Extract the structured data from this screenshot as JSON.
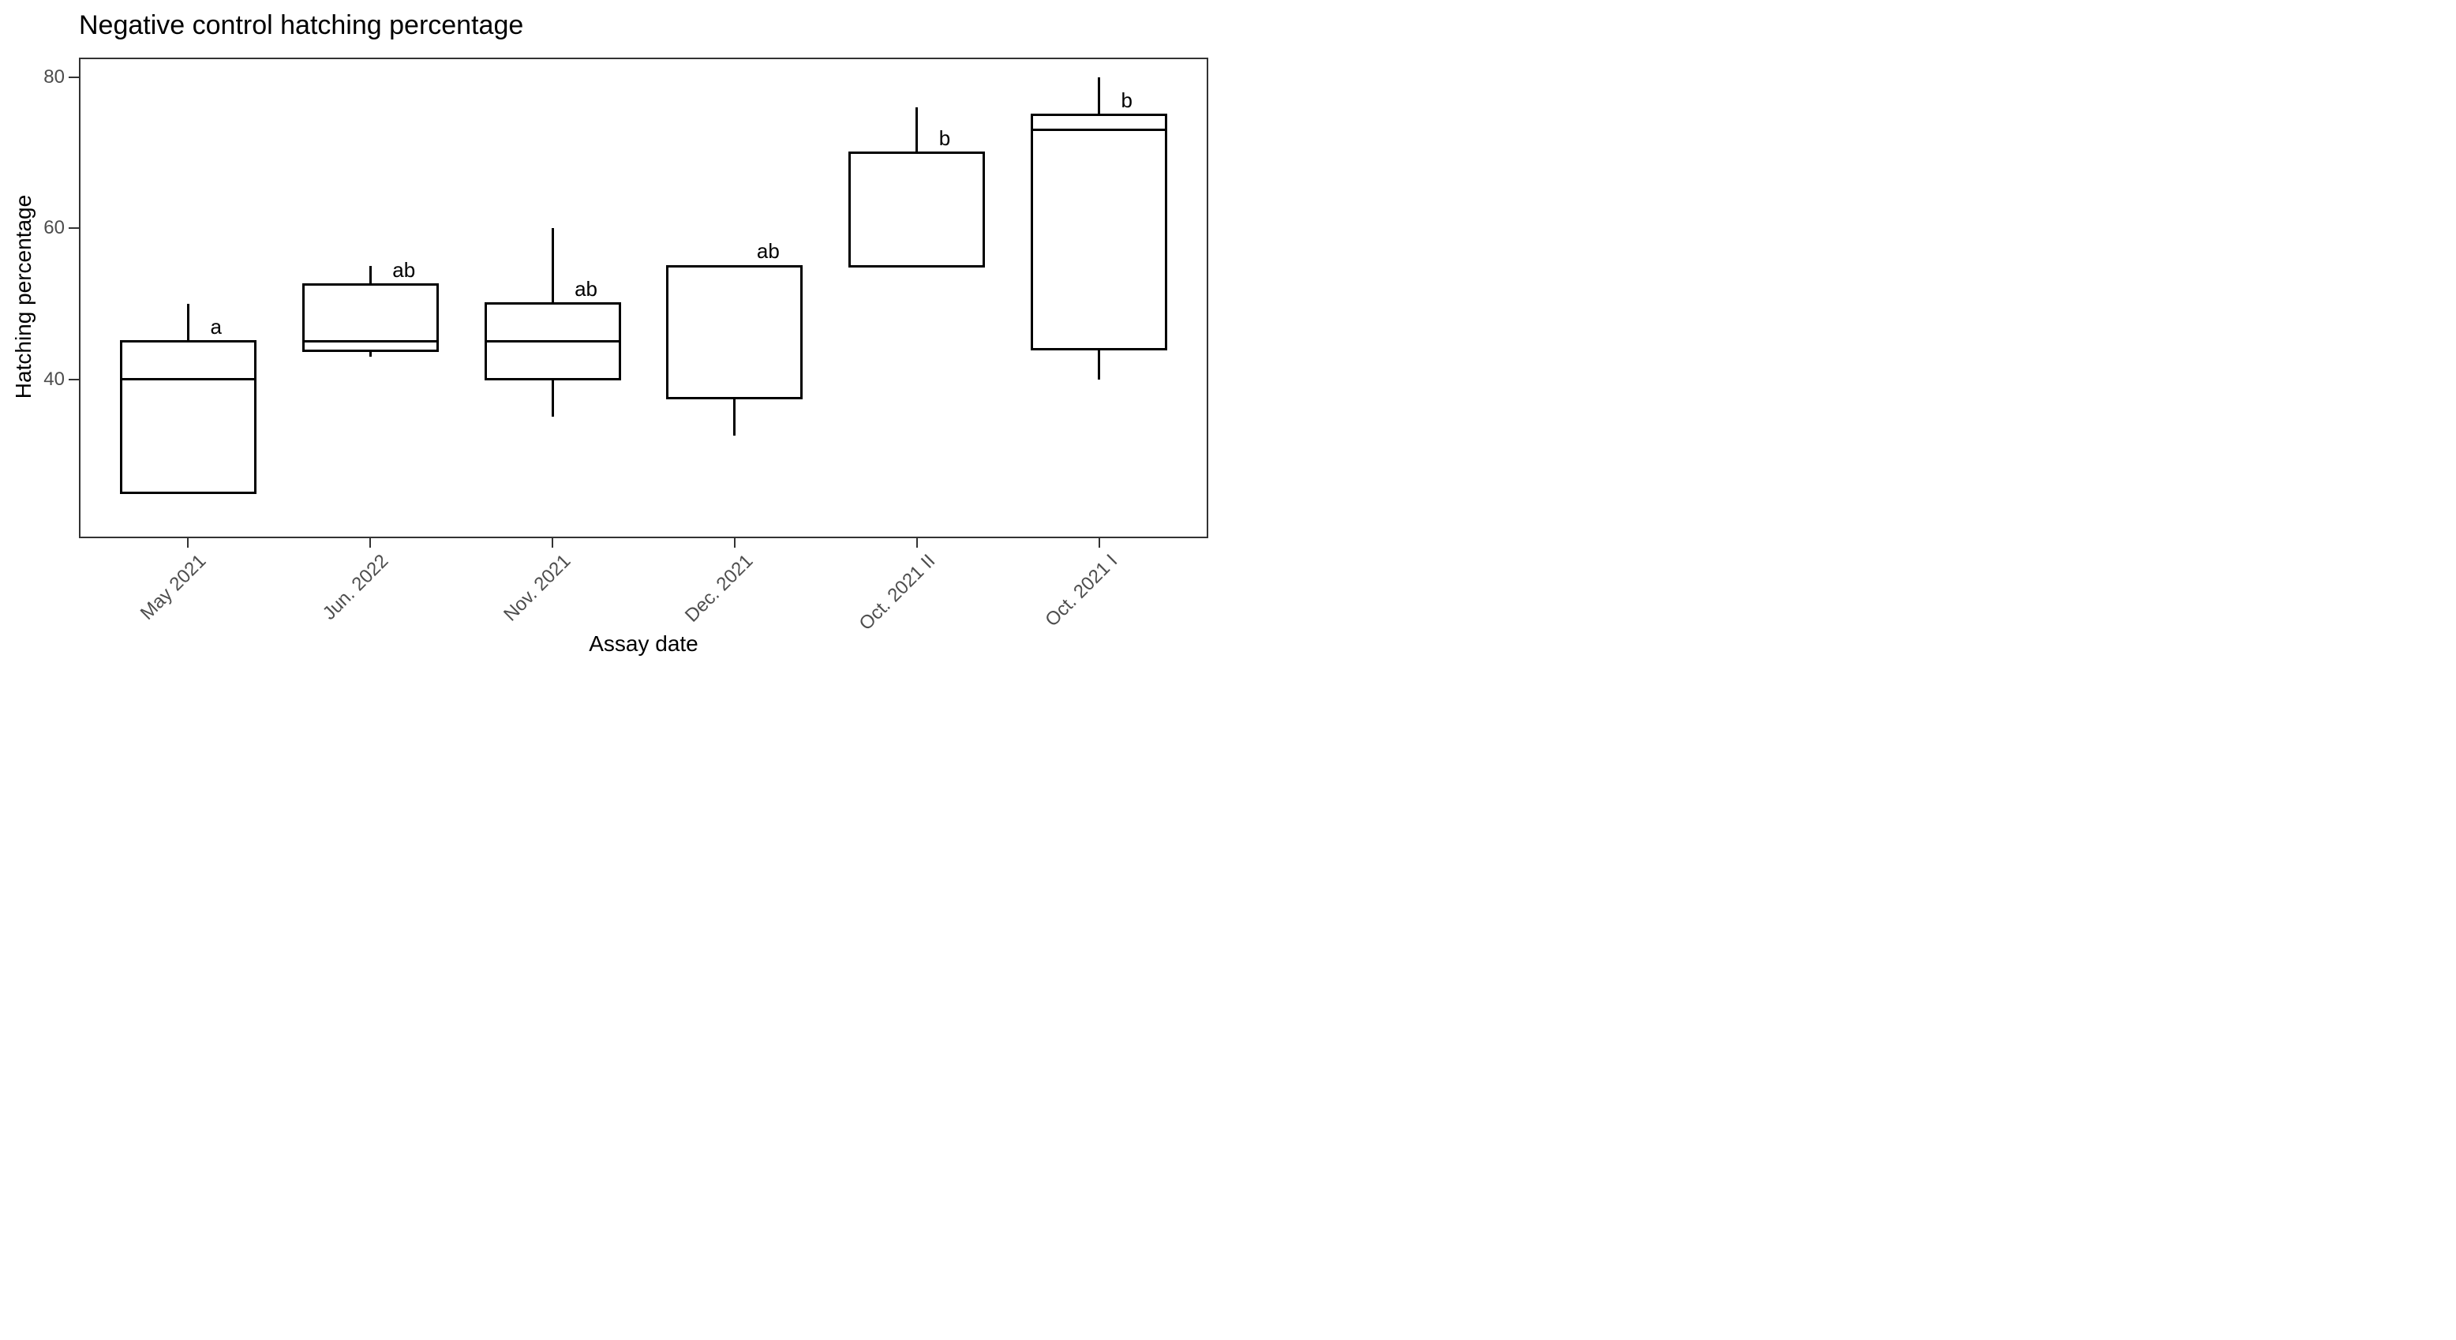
{
  "chart_data": {
    "type": "boxplot",
    "title": "Negative control hatching percentage",
    "xlabel": "Assay date",
    "ylabel": "Hatching percentage",
    "yticks": [
      40,
      60,
      80
    ],
    "ylim": [
      18.95,
      82.6
    ],
    "grid": "off",
    "categories": [
      "May 2021",
      "Jun. 2022",
      "Nov. 2021",
      "Dec. 2021",
      "Oct. 2021 II",
      "Oct. 2021 I"
    ],
    "boxes": [
      {
        "category": "May 2021",
        "letter": "a",
        "min": 25,
        "q1": 25,
        "median": 40,
        "q3": 45,
        "max": 50
      },
      {
        "category": "Jun. 2022",
        "letter": "ab",
        "min": 43,
        "q1": 43.75,
        "median": 45,
        "q3": 52.5,
        "max": 55
      },
      {
        "category": "Nov. 2021",
        "letter": "ab",
        "min": 35,
        "q1": 40,
        "median": 45,
        "q3": 50,
        "max": 60
      },
      {
        "category": "Dec. 2021",
        "letter": "ab",
        "min": 32.5,
        "q1": 37.5,
        "median": 37.5,
        "q3": 55,
        "max": 55
      },
      {
        "category": "Oct. 2021 II",
        "letter": "b",
        "min": 55,
        "q1": 55,
        "median": 55,
        "q3": 70,
        "max": 76
      },
      {
        "category": "Oct. 2021 I",
        "letter": "b",
        "min": 40,
        "q1": 44,
        "median": 73,
        "q3": 75,
        "max": 80
      }
    ],
    "colors": {
      "box_stroke": "#000000",
      "box_fill": "#ffffff",
      "panel_border": "#333333",
      "tick_mark": "#333333",
      "tick_label": "#4d4d4d",
      "text": "#000000",
      "background": "#ffffff"
    }
  }
}
